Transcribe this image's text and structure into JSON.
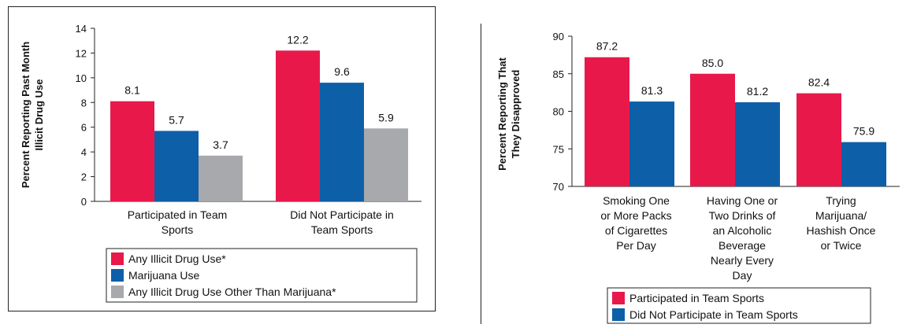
{
  "colors": {
    "red": "#e8194a",
    "blue": "#0d5fa8",
    "gray": "#a7a9ac"
  },
  "chart_data": [
    {
      "type": "bar",
      "title": "",
      "ylabel_lines": [
        "Percent Reporting Past Month",
        "Illicit Drug Use"
      ],
      "ylim": [
        0,
        14
      ],
      "yticks": [
        0,
        2,
        4,
        6,
        8,
        10,
        12,
        14
      ],
      "categories": [
        [
          "Participated in Team",
          "Sports"
        ],
        [
          "Did Not Participate in",
          "Team Sports"
        ]
      ],
      "series": [
        {
          "name": "Any Illicit Drug Use*",
          "color": "#e8194a",
          "values": [
            8.1,
            12.2
          ],
          "labels": [
            "8.1",
            "12.2"
          ]
        },
        {
          "name": "Marijuana Use",
          "color": "#0d5fa8",
          "values": [
            5.7,
            9.6
          ],
          "labels": [
            "5.7",
            "9.6"
          ]
        },
        {
          "name": "Any Illicit Drug Use Other Than Marijuana*",
          "color": "#a7a9ac",
          "values": [
            3.7,
            5.9
          ],
          "labels": [
            "3.7",
            "5.9"
          ]
        }
      ],
      "legend_position": "bottom"
    },
    {
      "type": "bar",
      "title": "",
      "ylabel_lines": [
        "Percent Reporting That",
        "They Disapproved"
      ],
      "ylim": [
        70,
        90
      ],
      "yticks": [
        70,
        75,
        80,
        85,
        90
      ],
      "categories": [
        [
          "Smoking One",
          "or More Packs",
          "of Cigarettes",
          "Per Day"
        ],
        [
          "Having One or",
          "Two Drinks of",
          "an Alcoholic",
          "Beverage",
          "Nearly Every",
          "Day"
        ],
        [
          "Trying",
          "Marijuana/",
          "Hashish Once",
          "or Twice"
        ]
      ],
      "series": [
        {
          "name": "Participated in Team Sports",
          "color": "#e8194a",
          "values": [
            87.2,
            85.0,
            82.4
          ],
          "labels": [
            "87.2",
            "85.0",
            "82.4"
          ]
        },
        {
          "name": "Did Not Participate in Team Sports",
          "color": "#0d5fa8",
          "values": [
            81.3,
            81.2,
            75.9
          ],
          "labels": [
            "81.3",
            "81.2",
            "75.9"
          ]
        }
      ],
      "legend_position": "bottom"
    }
  ]
}
